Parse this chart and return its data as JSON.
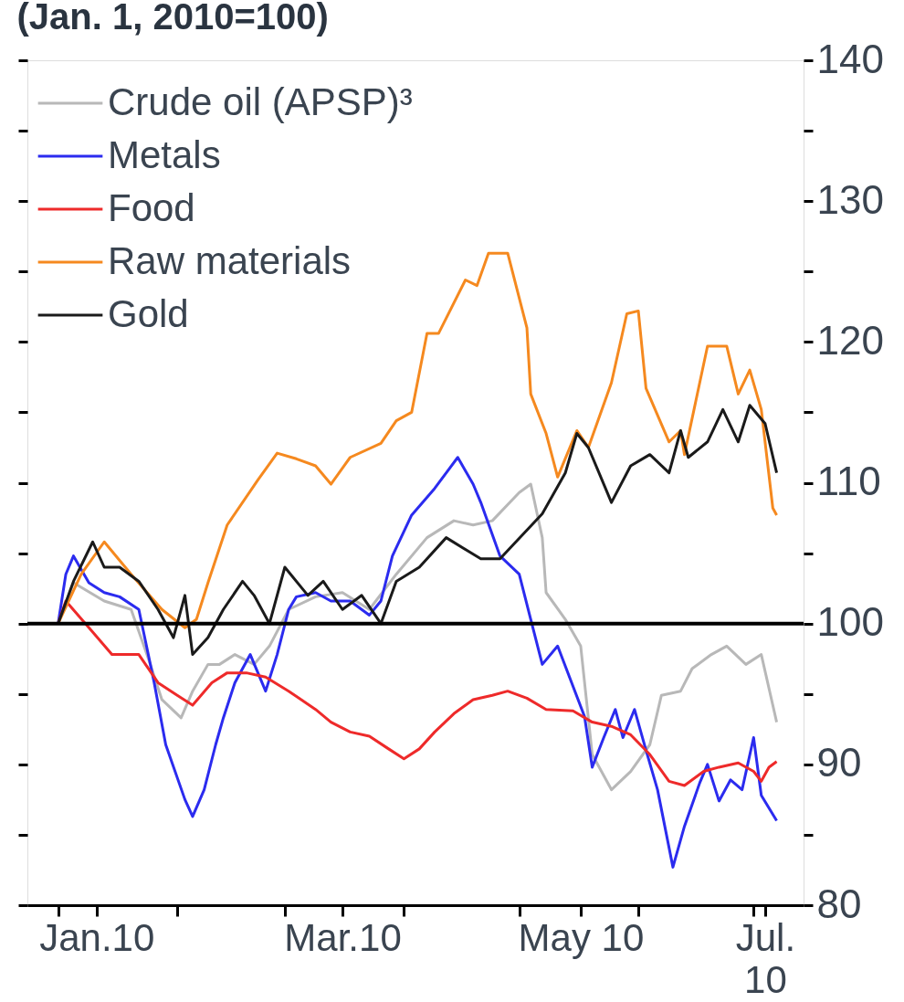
{
  "chart_data": {
    "type": "line",
    "title": "(Jan. 1, 2010=100)",
    "xlim": [
      "2009-12-24",
      "2010-07-14"
    ],
    "xticks": [
      {
        "value": "2010-01-01",
        "label": null
      },
      {
        "value": "2010-01-11",
        "label": "Jan.10"
      },
      {
        "value": "2010-02-01",
        "label": null
      },
      {
        "value": "2010-03-01",
        "label": null
      },
      {
        "value": "2010-03-16",
        "label": "Mar.10"
      },
      {
        "value": "2010-04-01",
        "label": null
      },
      {
        "value": "2010-05-01",
        "label": null
      },
      {
        "value": "2010-05-17",
        "label": "May 10"
      },
      {
        "value": "2010-06-01",
        "label": null
      },
      {
        "value": "2010-07-01",
        "label": null
      },
      {
        "value": "2010-07-04",
        "label": "Jul.\n10"
      }
    ],
    "ylim": [
      80,
      140
    ],
    "yticks": [
      80,
      {
        "value": 85,
        "label": null
      },
      90,
      {
        "value": 95,
        "label": null
      },
      100,
      {
        "value": 105,
        "label": null
      },
      110,
      {
        "value": 115,
        "label": null
      },
      120,
      {
        "value": 125,
        "label": null
      },
      130,
      {
        "value": 135,
        "label": null
      },
      140
    ],
    "grid": false,
    "legend": "top left",
    "ref_lines": [
      {
        "axis": "y",
        "value": 100,
        "color": "#000000"
      }
    ],
    "series": [
      {
        "name": "Crude oil (APSP)³",
        "color": "#b8b8b8",
        "x": [
          "2010-01-01",
          "2010-01-05",
          "2010-01-13",
          "2010-01-20",
          "2010-01-25",
          "2010-01-28",
          "2010-02-02",
          "2010-02-05",
          "2010-02-09",
          "2010-02-12",
          "2010-02-16",
          "2010-02-21",
          "2010-02-25",
          "2010-03-02",
          "2010-03-09",
          "2010-03-16",
          "2010-03-23",
          "2010-03-30",
          "2010-04-07",
          "2010-04-14",
          "2010-04-19",
          "2010-04-24",
          "2010-05-01",
          "2010-05-04",
          "2010-05-07",
          "2010-05-08",
          "2010-05-13",
          "2010-05-17",
          "2010-05-20",
          "2010-05-25",
          "2010-05-30",
          "2010-06-04",
          "2010-06-07",
          "2010-06-12",
          "2010-06-15",
          "2010-06-20",
          "2010-06-24",
          "2010-06-29",
          "2010-07-03",
          "2010-07-07"
        ],
        "values": [
          100,
          102.9,
          101.6,
          101,
          97.1,
          94.6,
          93.3,
          95.2,
          97.1,
          97.1,
          97.8,
          97.1,
          98.4,
          101,
          101.9,
          102.2,
          101,
          103.5,
          106.1,
          107.3,
          107,
          107.3,
          109.3,
          109.9,
          106.1,
          102.2,
          100.3,
          98.4,
          90.7,
          88.2,
          89.5,
          91.4,
          94.9,
          95.2,
          96.8,
          97.8,
          98.4,
          97.1,
          97.8,
          93
        ]
      },
      {
        "name": "Metals",
        "color": "#2b2bef",
        "x": [
          "2010-01-01",
          "2010-01-03",
          "2010-01-05",
          "2010-01-09",
          "2010-01-13",
          "2010-01-17",
          "2010-01-22",
          "2010-01-26",
          "2010-01-29",
          "2010-02-03",
          "2010-02-05",
          "2010-02-08",
          "2010-02-11",
          "2010-02-13",
          "2010-02-16",
          "2010-02-20",
          "2010-02-24",
          "2010-02-27",
          "2010-03-02",
          "2010-03-04",
          "2010-03-09",
          "2010-03-13",
          "2010-03-18",
          "2010-03-23",
          "2010-03-26",
          "2010-03-29",
          "2010-04-03",
          "2010-04-09",
          "2010-04-15",
          "2010-04-19",
          "2010-04-21",
          "2010-04-26",
          "2010-05-01",
          "2010-05-04",
          "2010-05-07",
          "2010-05-11",
          "2010-05-18",
          "2010-05-20",
          "2010-05-23",
          "2010-05-26",
          "2010-05-28",
          "2010-05-31",
          "2010-06-03",
          "2010-06-06",
          "2010-06-10",
          "2010-06-13",
          "2010-06-17",
          "2010-06-19",
          "2010-06-22",
          "2010-06-25",
          "2010-06-28",
          "2010-07-01",
          "2010-07-03",
          "2010-07-07"
        ],
        "values": [
          100,
          103.5,
          104.8,
          102.9,
          102.2,
          101.9,
          101,
          95.8,
          91.4,
          87.5,
          86.3,
          88.2,
          91.4,
          93.3,
          95.8,
          97.8,
          95.2,
          97.8,
          101,
          101.9,
          102.2,
          101.6,
          101.6,
          100.6,
          101.6,
          104.8,
          107.7,
          109.6,
          111.8,
          109.9,
          108.6,
          104.8,
          103.5,
          100.3,
          97.1,
          98.4,
          93.4,
          89.8,
          91.9,
          93.9,
          91.9,
          93.9,
          91,
          88.2,
          82.7,
          85.6,
          88.7,
          90,
          87.4,
          88.9,
          88.2,
          91.9,
          87.8,
          86
        ]
      },
      {
        "name": "Food",
        "color": "#ee2a2a",
        "x": [
          "2010-01-01",
          "2010-01-03",
          "2010-01-10",
          "2010-01-15",
          "2010-01-22",
          "2010-01-27",
          "2010-02-01",
          "2010-02-05",
          "2010-02-10",
          "2010-02-14",
          "2010-02-19",
          "2010-02-24",
          "2010-03-02",
          "2010-03-09",
          "2010-03-13",
          "2010-03-18",
          "2010-03-23",
          "2010-03-28",
          "2010-04-01",
          "2010-04-05",
          "2010-04-09",
          "2010-04-14",
          "2010-04-19",
          "2010-04-24",
          "2010-04-28",
          "2010-05-03",
          "2010-05-08",
          "2010-05-15",
          "2010-05-20",
          "2010-05-25",
          "2010-05-30",
          "2010-06-04",
          "2010-06-09",
          "2010-06-13",
          "2010-06-18",
          "2010-06-22",
          "2010-06-27",
          "2010-07-01",
          "2010-07-03",
          "2010-07-05",
          "2010-07-07"
        ],
        "values": [
          100,
          101.6,
          99.4,
          97.8,
          97.8,
          95.8,
          94.9,
          94.2,
          95.8,
          96.5,
          96.5,
          96.2,
          95.2,
          93.9,
          93,
          92.3,
          92,
          91.1,
          90.4,
          91.1,
          92.3,
          93.6,
          94.6,
          94.9,
          95.2,
          94.7,
          93.9,
          93.8,
          93,
          92.7,
          92.1,
          90.7,
          88.8,
          88.5,
          89.5,
          89.8,
          90.1,
          89.5,
          88.8,
          89.8,
          90.2
        ]
      },
      {
        "name": "Raw materials",
        "color": "#f5891f",
        "x": [
          "2010-01-01",
          "2010-01-07",
          "2010-01-13",
          "2010-01-20",
          "2010-01-28",
          "2010-02-03",
          "2010-02-06",
          "2010-02-09",
          "2010-02-14",
          "2010-02-22",
          "2010-02-27",
          "2010-03-04",
          "2010-03-09",
          "2010-03-13",
          "2010-03-18",
          "2010-03-26",
          "2010-03-30",
          "2010-04-03",
          "2010-04-07",
          "2010-04-10",
          "2010-04-17",
          "2010-04-20",
          "2010-04-23",
          "2010-04-28",
          "2010-05-03",
          "2010-05-04",
          "2010-05-08",
          "2010-05-11",
          "2010-05-16",
          "2010-05-19",
          "2010-05-25",
          "2010-05-29",
          "2010-06-01",
          "2010-06-03",
          "2010-06-09",
          "2010-06-12",
          "2010-06-13",
          "2010-06-19",
          "2010-06-24",
          "2010-06-27",
          "2010-06-30",
          "2010-07-03",
          "2010-07-06",
          "2010-07-07"
        ],
        "values": [
          100,
          103.5,
          105.8,
          103.5,
          101,
          99.7,
          100.3,
          102.9,
          107,
          110.2,
          112.1,
          111.7,
          111.2,
          109.9,
          111.8,
          112.8,
          114.4,
          115,
          120.6,
          120.6,
          124.4,
          124,
          126.3,
          126.3,
          121,
          116.3,
          113.5,
          110.4,
          113.7,
          112.5,
          117.1,
          122,
          122.2,
          116.7,
          112.9,
          113.7,
          112,
          119.7,
          119.7,
          116.3,
          118,
          115.2,
          108.2,
          107.7
        ]
      },
      {
        "name": "Gold",
        "color": "#1a1a1a",
        "x": [
          "2010-01-01",
          "2010-01-05",
          "2010-01-10",
          "2010-01-13",
          "2010-01-17",
          "2010-01-22",
          "2010-01-27",
          "2010-01-31",
          "2010-02-03",
          "2010-02-05",
          "2010-02-09",
          "2010-02-13",
          "2010-02-18",
          "2010-02-21",
          "2010-02-25",
          "2010-03-01",
          "2010-03-07",
          "2010-03-11",
          "2010-03-16",
          "2010-03-21",
          "2010-03-26",
          "2010-03-30",
          "2010-04-05",
          "2010-04-12",
          "2010-04-21",
          "2010-04-26",
          "2010-05-07",
          "2010-05-13",
          "2010-05-16",
          "2010-05-19",
          "2010-05-25",
          "2010-05-30",
          "2010-06-04",
          "2010-06-09",
          "2010-06-12",
          "2010-06-14",
          "2010-06-19",
          "2010-06-23",
          "2010-06-27",
          "2010-06-30",
          "2010-07-04",
          "2010-07-07"
        ],
        "values": [
          100,
          103,
          105.8,
          104,
          104,
          103,
          101,
          99,
          102,
          97.8,
          99,
          101,
          103,
          102,
          100,
          104,
          102,
          103,
          101,
          102,
          100,
          103,
          104,
          106.1,
          104.6,
          104.6,
          107.8,
          110.7,
          113.5,
          112.5,
          108.6,
          111.2,
          112,
          110.7,
          113.7,
          111.8,
          112.9,
          115.2,
          112.9,
          115.5,
          114.2,
          110.7
        ]
      }
    ]
  }
}
